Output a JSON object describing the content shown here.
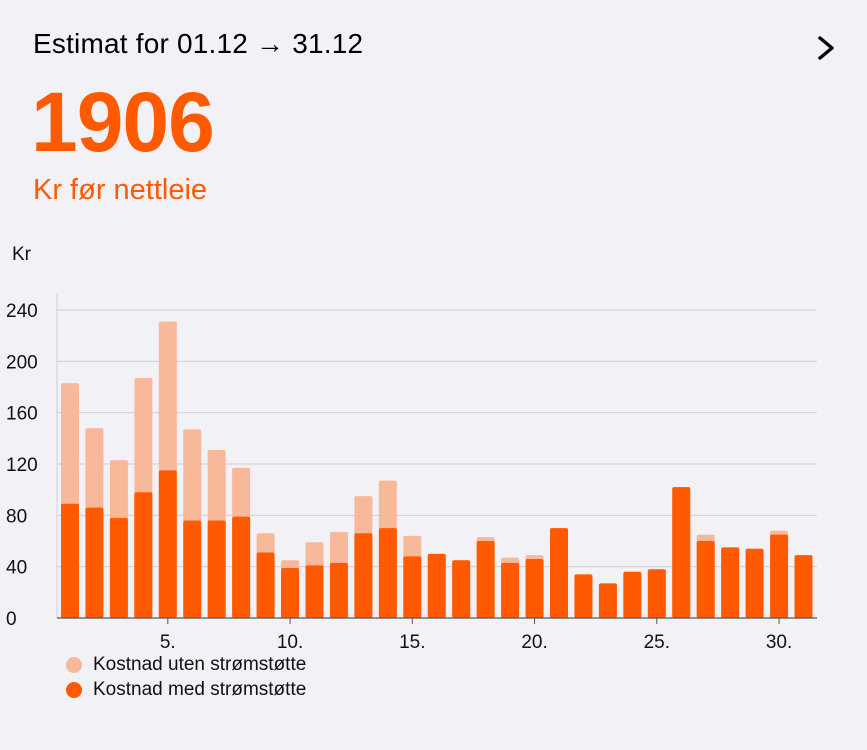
{
  "header": {
    "title": "Estimat for 01.12 → 31.12"
  },
  "summary": {
    "value": "1906",
    "caption": "Kr før nettleie"
  },
  "colors": {
    "accent": "#ff5a00",
    "light": "#f8b89a",
    "grid": "#cfced6",
    "background": "#f2f1f6"
  },
  "icons": {
    "next": "chevron-right-icon"
  },
  "chart_data": {
    "type": "bar",
    "ylabel": "Kr",
    "ylim": [
      0,
      255
    ],
    "yticks": [
      0,
      40,
      80,
      120,
      160,
      200,
      240
    ],
    "xticks": [
      5,
      10,
      15,
      20,
      25,
      30
    ],
    "xtick_labels": [
      "5.",
      "10.",
      "15.",
      "20.",
      "25.",
      "30."
    ],
    "grid": true,
    "legend_position": "bottom-left",
    "categories": [
      1,
      2,
      3,
      4,
      5,
      6,
      7,
      8,
      9,
      10,
      11,
      12,
      13,
      14,
      15,
      16,
      17,
      18,
      19,
      20,
      21,
      22,
      23,
      24,
      25,
      26,
      27,
      28,
      29,
      30,
      31
    ],
    "series": [
      {
        "name": "Kostnad uten strømstøtte",
        "color": "#f8b89a",
        "values": [
          183,
          148,
          123,
          187,
          231,
          147,
          131,
          117,
          66,
          45,
          59,
          67,
          95,
          107,
          64,
          50,
          45,
          63,
          47,
          49,
          70,
          34,
          27,
          36,
          38,
          102,
          65,
          55,
          54,
          68,
          49
        ]
      },
      {
        "name": "Kostnad med strømstøtte",
        "color": "#ff5a00",
        "values": [
          89,
          86,
          78,
          98,
          115,
          76,
          76,
          79,
          51,
          39,
          41,
          43,
          66,
          70,
          48,
          50,
          45,
          60,
          43,
          46,
          70,
          34,
          27,
          36,
          38,
          102,
          60,
          55,
          54,
          65,
          49
        ]
      }
    ]
  }
}
